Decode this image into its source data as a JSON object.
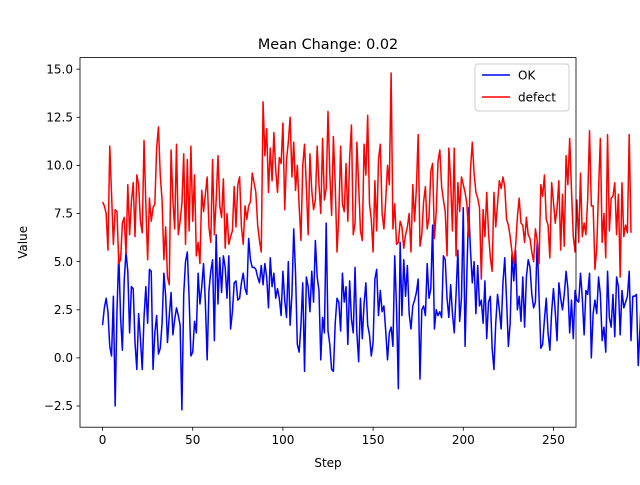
{
  "chart_data": {
    "type": "line",
    "title": "Mean Change: 0.02",
    "xlabel": "Step",
    "ylabel": "Value",
    "xlim": [
      -12.5,
      262.5
    ],
    "ylim": [
      -3.6,
      15.6
    ],
    "xticks": [
      0,
      50,
      100,
      150,
      200,
      250
    ],
    "xtick_labels": [
      "0",
      "50",
      "100",
      "150",
      "200",
      "250"
    ],
    "yticks": [
      -2.5,
      0.0,
      2.5,
      5.0,
      7.5,
      10.0,
      12.5,
      15.0
    ],
    "ytick_labels": [
      "−2.5",
      "0.0",
      "2.5",
      "5.0",
      "7.5",
      "10.0",
      "12.5",
      "15.0"
    ],
    "grid": false,
    "legend_position": "top-right",
    "series": [
      {
        "name": "OK",
        "color": "#0000ff",
        "x_start": 0,
        "x_step": 1,
        "values": [
          1.7,
          2.6,
          3.1,
          2.4,
          0.6,
          0.1,
          3.2,
          -2.5,
          2.4,
          5.4,
          2.1,
          0.4,
          4.0,
          5.5,
          4.5,
          1.3,
          3.7,
          3.6,
          0.8,
          -0.6,
          2.3,
          1.0,
          -0.6,
          2.1,
          3.7,
          1.8,
          4.6,
          4.5,
          -0.6,
          1.3,
          2.2,
          0.2,
          0.5,
          1.8,
          4.4,
          3.2,
          0.8,
          2.2,
          3.4,
          1.2,
          2.0,
          2.6,
          2.2,
          1.7,
          -2.7,
          3.3,
          5.0,
          5.5,
          3.1,
          0.1,
          0.3,
          1.9,
          1.3,
          4.4,
          2.8,
          3.7,
          4.9,
          2.9,
          -0.1,
          3.5,
          4.5,
          5.1,
          0.9,
          6.4,
          2.8,
          5.2,
          3.4,
          5.3,
          4.7,
          3.1,
          5.3,
          1.5,
          2.4,
          3.9,
          4.0,
          3.0,
          3.1,
          3.9,
          4.4,
          3.6,
          3.3,
          6.2,
          5.1,
          4.7,
          4.7,
          4.6,
          4.2,
          3.9,
          4.8,
          3.8,
          4.9,
          4.2,
          2.6,
          5.2,
          3.7,
          4.4,
          3.1,
          3.6,
          3.1,
          2.2,
          4.5,
          3.0,
          2.1,
          5.0,
          1.7,
          3.3,
          6.7,
          4.4,
          0.7,
          0.3,
          1.7,
          3.9,
          -0.7,
          4.2,
          3.7,
          2.4,
          4.5,
          2.9,
          6.1,
          4.2,
          3.5,
          -0.1,
          2.1,
          1.3,
          7.0,
          1.4,
          0.7,
          -0.6,
          -0.7,
          1.8,
          3.1,
          2.9,
          1.4,
          4.4,
          2.9,
          3.7,
          0.7,
          4.0,
          2.0,
          1.3,
          4.7,
          1.3,
          -0.2,
          3.1,
          1.0,
          2.8,
          3.9,
          1.7,
          1.2,
          0.1,
          0.8,
          4.1,
          4.6,
          2.2,
          3.5,
          2.4,
          2.7,
          1.4,
          -0.1,
          1.3,
          1.6,
          0.6,
          5.3,
          2.6,
          -1.6,
          6.0,
          2.2,
          5.1,
          3.2,
          4.8,
          2.3,
          1.5,
          2.7,
          3.0,
          3.4,
          4.1,
          -1.1,
          2.5,
          2.7,
          2.2,
          4.9,
          3.1,
          3.6,
          6.9,
          1.5,
          2.5,
          2.2,
          2.4,
          2.1,
          5.3,
          5.1,
          3.1,
          2.1,
          3.8,
          2.3,
          1.3,
          3.3,
          5.6,
          1.9,
          3.1,
          7.8,
          0.6,
          4.4,
          7.8,
          5.6,
          3.9,
          5.0,
          2.3,
          4.8,
          2.7,
          3.0,
          1.8,
          4.0,
          1.0,
          2.9,
          3.2,
          0.5,
          -0.6,
          1.8,
          3.3,
          2.5,
          1.5,
          3.9,
          5.2,
          3.0,
          0.6,
          1.8,
          5.4,
          4.0,
          5.6,
          2.5,
          3.2,
          1.9,
          4.2,
          1.6,
          4.2,
          5.1,
          4.7,
          3.3,
          2.6,
          2.9,
          6.1,
          3.2,
          0.5,
          0.7,
          2.0,
          3.1,
          1.3,
          0.4,
          2.4,
          3.6,
          2.4,
          0.9,
          3.9,
          3.1,
          2.5,
          3.3,
          4.5,
          3.6,
          1.3,
          3.0,
          1.0,
          3.5,
          3.0,
          2.9,
          4.4,
          3.1,
          1.2,
          3.5,
          3.3,
          4.4,
          0.0,
          2.3,
          3.0,
          2.3,
          4.2,
          3.3,
          0.9,
          1.6,
          0.3,
          4.5,
          2.1,
          1.6,
          3.3,
          1.1,
          4.2,
          3.7,
          1.2,
          3.5,
          2.6,
          2.9,
          3.2,
          4.5,
          0.9,
          3.2,
          3.2,
          3.3,
          -0.4,
          1.6,
          3.9,
          4.6,
          6.4,
          3.0
        ]
      },
      {
        "name": "defect",
        "color": "#ff0000",
        "x_start": 0,
        "x_step": 1,
        "values": [
          8.1,
          7.9,
          7.5,
          5.6,
          11.0,
          8.5,
          5.9,
          7.7,
          7.6,
          4.9,
          5.1,
          7.0,
          7.3,
          5.4,
          9.0,
          6.4,
          8.1,
          9.1,
          6.3,
          9.5,
          9.0,
          7.1,
          6.5,
          11.3,
          8.0,
          5.1,
          8.3,
          7.1,
          7.8,
          8.0,
          10.9,
          12.0,
          9.5,
          8.2,
          5.1,
          6.8,
          4.2,
          3.8,
          10.8,
          8.2,
          6.7,
          11.1,
          6.4,
          7.1,
          8.0,
          10.6,
          5.9,
          10.3,
          6.6,
          11.0,
          7.1,
          9.5,
          5.3,
          6.0,
          4.9,
          8.7,
          7.6,
          8.5,
          9.4,
          6.8,
          6.0,
          10.3,
          6.4,
          8.2,
          10.5,
          7.9,
          7.3,
          9.3,
          5.7,
          7.5,
          5.9,
          6.3,
          6.6,
          8.9,
          6.8,
          9.0,
          9.4,
          6.8,
          5.9,
          7.9,
          7.2,
          7.9,
          8.1,
          9.6,
          9.1,
          8.6,
          6.9,
          6.1,
          5.5,
          13.3,
          10.5,
          11.9,
          8.6,
          10.9,
          9.2,
          11.7,
          9.8,
          8.6,
          10.4,
          10.1,
          12.2,
          7.7,
          10.3,
          11.2,
          12.5,
          9.4,
          11.2,
          8.7,
          10.0,
          7.9,
          6.1,
          10.0,
          11.1,
          8.9,
          6.4,
          10.6,
          8.7,
          7.7,
          8.2,
          11.0,
          9.0,
          7.5,
          11.4,
          8.2,
          8.8,
          12.8,
          9.6,
          7.4,
          11.5,
          9.0,
          5.5,
          7.4,
          11.0,
          8.0,
          7.6,
          10.1,
          7.1,
          10.4,
          12.1,
          6.4,
          7.0,
          11.2,
          9.0,
          6.6,
          6.1,
          11.1,
          9.5,
          12.6,
          8.0,
          7.2,
          5.5,
          9.2,
          6.6,
          10.3,
          11.1,
          7.5,
          6.7,
          8.2,
          10.0,
          9.0,
          14.8,
          6.7,
          8.0,
          5.9,
          6.0,
          7.1,
          6.8,
          5.7,
          6.4,
          6.8,
          7.5,
          5.5,
          9.0,
          7.1,
          8.8,
          11.6,
          5.8,
          6.4,
          8.1,
          8.9,
          6.7,
          7.3,
          9.7,
          10.1,
          6.2,
          7.6,
          10.2,
          10.8,
          8.9,
          8.2,
          7.6,
          5.3,
          10.9,
          9.2,
          6.6,
          10.9,
          5.3,
          9.1,
          7.6,
          9.4,
          9.0,
          8.6,
          8.0,
          6.3,
          9.8,
          11.2,
          9.6,
          8.6,
          8.3,
          7.8,
          4.1,
          7.7,
          6.3,
          8.6,
          6.5,
          5.2,
          4.5,
          8.6,
          6.8,
          8.0,
          9.2,
          8.8,
          9.4,
          8.9,
          7.2,
          6.9,
          6.3,
          5.5,
          4.9,
          5.8,
          7.3,
          8.3,
          7.0,
          6.9,
          6.0,
          7.3,
          6.4,
          6.2,
          5.5,
          5.0,
          6.7,
          6.1,
          4.9,
          9.0,
          8.4,
          9.5,
          7.2,
          6.9,
          5.2,
          9.1,
          8.1,
          7.0,
          7.8,
          9.2,
          5.6,
          8.5,
          5.8,
          10.5,
          9.0,
          11.4,
          8.7,
          6.3,
          5.5,
          8.2,
          6.0,
          9.6,
          6.3,
          7.0,
          6.4,
          8.3,
          11.8,
          7.9,
          7.9,
          4.6,
          5.7,
          8.7,
          11.4,
          6.0,
          7.5,
          5.2,
          11.6,
          6.6,
          8.3,
          8.4,
          9.1,
          6.4,
          8.5,
          4.2,
          9.1,
          6.3,
          6.9,
          6.5,
          11.6,
          6.5
        ]
      }
    ]
  }
}
